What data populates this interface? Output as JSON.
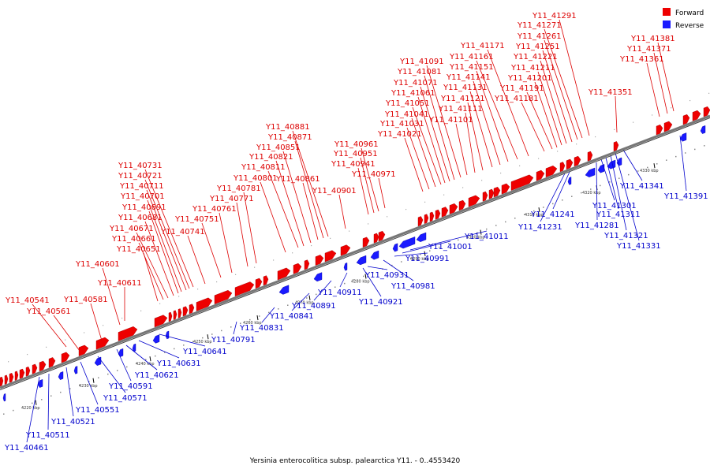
{
  "title": "Yersinia enterocolitica subsp. palearctica Y11. - 0..4553420",
  "colors": {
    "forward": "#ee0000",
    "reverse": "#1a1aff",
    "backbone": "#888888"
  },
  "legend": [
    {
      "label": "Forward",
      "color": "#ee0000"
    },
    {
      "label": "Reverse",
      "color": "#1a1aff"
    }
  ],
  "scale": {
    "unit": "kbp",
    "ticks": [
      4220,
      4230,
      4240,
      4250,
      4260,
      4270,
      4280,
      4290,
      4300,
      4310,
      4320,
      4330
    ]
  },
  "forward_labels": [
    "Y11_40541",
    "Y11_40561",
    "Y11_40581",
    "Y11_40601",
    "Y11_40611",
    "Y11_40651",
    "Y11_40661",
    "Y11_40671",
    "Y11_40681",
    "Y11_40691",
    "Y11_40701",
    "Y11_40711",
    "Y11_40721",
    "Y11_40731",
    "Y11_40741",
    "Y11_40751",
    "Y11_40761",
    "Y11_40771",
    "Y11_40781",
    "Y11_40801",
    "Y11_40811",
    "Y11_40821",
    "Y11_40851",
    "Y11_40861",
    "Y11_40871",
    "Y11_40881",
    "Y11_40901",
    "Y11_40941",
    "Y11_40951",
    "Y11_40961",
    "Y11_40971",
    "Y11_41021",
    "Y11_41031",
    "Y11_41041",
    "Y11_41051",
    "Y11_41061",
    "Y11_41071",
    "Y11_41081",
    "Y11_41091",
    "Y11_41101",
    "Y11_41111",
    "Y11_41121",
    "Y11_41131",
    "Y11_41141",
    "Y11_41151",
    "Y11_41161",
    "Y11_41171",
    "Y11_41181",
    "Y11_41191",
    "Y11_41201",
    "Y11_41211",
    "Y11_41221",
    "Y11_41251",
    "Y11_41261",
    "Y11_41271",
    "Y11_41291",
    "Y11_41351",
    "Y11_41361",
    "Y11_41371",
    "Y11_41381"
  ],
  "reverse_labels": [
    "Y11_40461",
    "Y11_40511",
    "Y11_40521",
    "Y11_40551",
    "Y11_40571",
    "Y11_40591",
    "Y11_40621",
    "Y11_40631",
    "Y11_40641",
    "Y11_40791",
    "Y11_40831",
    "Y11_40841",
    "Y11_40891",
    "Y11_40911",
    "Y11_40921",
    "Y11_40931",
    "Y11_40981",
    "Y11_40991",
    "Y11_41001",
    "Y11_41011",
    "Y11_41231",
    "Y11_41241",
    "Y11_41281",
    "Y11_41301",
    "Y11_41311",
    "Y11_41321",
    "Y11_41331",
    "Y11_41341",
    "Y11_41391"
  ]
}
